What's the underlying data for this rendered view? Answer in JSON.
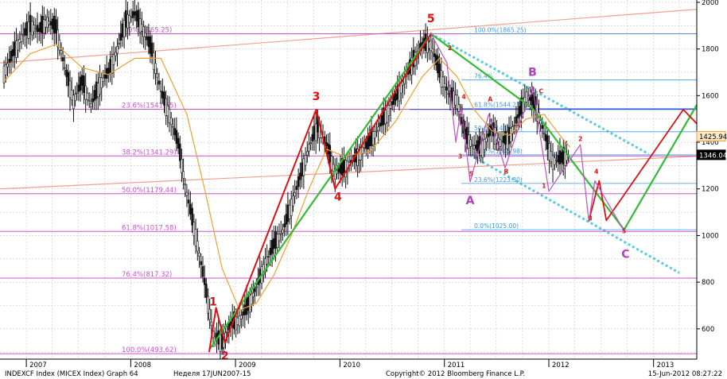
{
  "chart_data": {
    "type": "candlestick",
    "title": "",
    "x_axis": {
      "labels": [
        "2007",
        "2008",
        "2009",
        "2010",
        "2011",
        "2012",
        "2013"
      ],
      "range": [
        "2006-10",
        "2013-06"
      ]
    },
    "y_axis": {
      "ticks": [
        600,
        800,
        1000,
        1200,
        1400,
        1600,
        1800,
        2000
      ],
      "range": [
        470,
        2010
      ],
      "position": "right"
    },
    "grid": true,
    "fib_levels": [
      {
        "label": "0.0%(1865.25)",
        "value": 1865.25
      },
      {
        "label": "23.6%(1541.55)",
        "value": 1541.55
      },
      {
        "label": "38.2%(1341.29)",
        "value": 1341.29
      },
      {
        "label": "50.0%(1179.44)",
        "value": 1179.44
      },
      {
        "label": "61.8%(1017.58)",
        "value": 1017.58
      },
      {
        "label": "76.4%(817.32)",
        "value": 817.32
      },
      {
        "label": "100.0%(493.62)",
        "value": 493.62
      }
    ],
    "fib_levels_2": [
      {
        "label": "100.0%(1865.25)",
        "value": 1865.25
      },
      {
        "label": "76.4%",
        "value": 1667
      },
      {
        "label": "61.8%(1544.27)",
        "value": 1544.27
      },
      {
        "label": "50.0%(1445.13)",
        "value": 1445.13
      },
      {
        "label": "38.2%(1345.98)",
        "value": 1345.98
      },
      {
        "label": "23.6%(1223.30)",
        "value": 1223.3
      },
      {
        "label": "0.0%(1025.00)",
        "value": 1025.0
      }
    ],
    "price_tags": [
      {
        "label": "1425.94",
        "value": 1425.94
      },
      {
        "label": "1346.04",
        "value": 1346.04
      }
    ],
    "wave_labels": [
      {
        "text": "1",
        "x": "2008-10-15",
        "y": 700,
        "color": "#dd1111"
      },
      {
        "text": "2",
        "x": "2008-11-25",
        "y": 468,
        "color": "#dd1111"
      },
      {
        "text": "3",
        "x": "2009-10-10",
        "y": 1580,
        "color": "#dd1111"
      },
      {
        "text": "4",
        "x": "2009-12-25",
        "y": 1150,
        "color": "#dd1111"
      },
      {
        "text": "5",
        "x": "2010-11-15",
        "y": 1915,
        "color": "#dd1111"
      },
      {
        "text": "A",
        "x": "2011-04-01",
        "y": 1135,
        "color": "#b040c0"
      },
      {
        "text": "B",
        "x": "2011-11-05",
        "y": 1685,
        "color": "#b040c0"
      },
      {
        "text": "C",
        "x": "2012-09-25",
        "y": 905,
        "color": "#b040c0"
      },
      {
        "text": "1",
        "x": "2011-09-15",
        "y": 1470,
        "color": "#dd1111"
      },
      {
        "text": "2",
        "x": "2011-01-20",
        "y": 1795,
        "color": "#dd1111"
      },
      {
        "text": "3",
        "x": "2011-02-25",
        "y": 1330,
        "color": "#dd1111"
      },
      {
        "text": "4",
        "x": "2011-03-10",
        "y": 1585,
        "color": "#dd1111"
      },
      {
        "text": "5",
        "x": "2011-04-05",
        "y": 1255,
        "color": "#dd1111"
      },
      {
        "text": "A",
        "x": "2011-06-10",
        "y": 1575,
        "color": "#dd1111"
      },
      {
        "text": "B",
        "x": "2011-08-05",
        "y": 1265,
        "color": "#dd1111"
      },
      {
        "text": "C",
        "x": "2011-12-05",
        "y": 1610,
        "color": "#dd1111"
      },
      {
        "text": "1",
        "x": "2011-12-15",
        "y": 1205,
        "color": "#dd1111"
      },
      {
        "text": "2",
        "x": "2012-04-20",
        "y": 1405,
        "color": "#dd1111"
      },
      {
        "text": "3",
        "x": "2012-05-25",
        "y": 1065,
        "color": "#dd1111"
      },
      {
        "text": "4",
        "x": "2012-06-15",
        "y": 1265,
        "color": "#dd1111"
      },
      {
        "text": "5",
        "x": "2012-09-20",
        "y": 1010,
        "color": "#dd1111"
      }
    ],
    "series": [
      {
        "type": "candlestick",
        "points": [
          [
            "2006-10-15",
            1700
          ],
          [
            "2006-11-15",
            1780
          ],
          [
            "2006-12-15",
            1850
          ],
          [
            "2007-01-15",
            1900
          ],
          [
            "2007-02-15",
            1880
          ],
          [
            "2007-03-15",
            1920
          ],
          [
            "2007-04-15",
            1890
          ],
          [
            "2007-05-15",
            1720
          ],
          [
            "2007-06-15",
            1580
          ],
          [
            "2007-07-15",
            1660
          ],
          [
            "2007-08-15",
            1560
          ],
          [
            "2007-09-15",
            1650
          ],
          [
            "2007-10-15",
            1700
          ],
          [
            "2007-11-15",
            1800
          ],
          [
            "2007-12-15",
            1920
          ],
          [
            "2008-01-15",
            1950
          ],
          [
            "2008-02-15",
            1880
          ],
          [
            "2008-03-15",
            1790
          ],
          [
            "2008-04-15",
            1620
          ],
          [
            "2008-05-15",
            1520
          ],
          [
            "2008-06-15",
            1390
          ],
          [
            "2008-07-15",
            1180
          ],
          [
            "2008-08-15",
            1000
          ],
          [
            "2008-09-15",
            800
          ],
          [
            "2008-10-15",
            580
          ],
          [
            "2008-11-15",
            540
          ],
          [
            "2008-12-15",
            620
          ],
          [
            "2009-01-15",
            640
          ],
          [
            "2009-02-15",
            700
          ],
          [
            "2009-03-15",
            780
          ],
          [
            "2009-04-15",
            880
          ],
          [
            "2009-05-15",
            960
          ],
          [
            "2009-06-15",
            1020
          ],
          [
            "2009-07-15",
            1130
          ],
          [
            "2009-08-15",
            1250
          ],
          [
            "2009-09-15",
            1380
          ],
          [
            "2009-10-15",
            1470
          ],
          [
            "2009-11-15",
            1390
          ],
          [
            "2009-12-15",
            1270
          ],
          [
            "2010-01-15",
            1290
          ],
          [
            "2010-02-15",
            1320
          ],
          [
            "2010-03-15",
            1360
          ],
          [
            "2010-04-15",
            1400
          ],
          [
            "2010-05-15",
            1460
          ],
          [
            "2010-06-15",
            1530
          ],
          [
            "2010-07-15",
            1590
          ],
          [
            "2010-08-15",
            1670
          ],
          [
            "2010-09-15",
            1750
          ],
          [
            "2010-10-15",
            1820
          ],
          [
            "2010-11-15",
            1820
          ],
          [
            "2010-12-15",
            1700
          ],
          [
            "2011-01-15",
            1610
          ],
          [
            "2011-02-15",
            1580
          ],
          [
            "2011-03-15",
            1430
          ],
          [
            "2011-04-15",
            1380
          ],
          [
            "2011-05-15",
            1380
          ],
          [
            "2011-06-15",
            1460
          ],
          [
            "2011-07-15",
            1400
          ],
          [
            "2011-08-15",
            1420
          ],
          [
            "2011-09-15",
            1510
          ],
          [
            "2011-10-15",
            1600
          ],
          [
            "2011-11-15",
            1560
          ],
          [
            "2011-12-15",
            1440
          ],
          [
            "2012-01-15",
            1320
          ],
          [
            "2012-02-15",
            1330
          ],
          [
            "2012-03-15",
            1346
          ]
        ]
      },
      {
        "type": "moving_average",
        "color": "#f0a030",
        "points": [
          [
            "2006-10-15",
            1660
          ],
          [
            "2007-01-15",
            1780
          ],
          [
            "2007-04-15",
            1820
          ],
          [
            "2007-07-15",
            1720
          ],
          [
            "2007-10-15",
            1690
          ],
          [
            "2008-01-15",
            1760
          ],
          [
            "2008-04-15",
            1760
          ],
          [
            "2008-07-15",
            1520
          ],
          [
            "2008-09-15",
            1200
          ],
          [
            "2008-11-15",
            860
          ],
          [
            "2009-01-15",
            680
          ],
          [
            "2009-03-15",
            710
          ],
          [
            "2009-05-15",
            830
          ],
          [
            "2009-07-15",
            1000
          ],
          [
            "2009-09-15",
            1200
          ],
          [
            "2009-11-15",
            1370
          ],
          [
            "2010-01-15",
            1340
          ],
          [
            "2010-04-15",
            1360
          ],
          [
            "2010-07-15",
            1490
          ],
          [
            "2010-10-15",
            1680
          ],
          [
            "2010-12-15",
            1760
          ],
          [
            "2011-02-15",
            1680
          ],
          [
            "2011-04-15",
            1540
          ],
          [
            "2011-06-15",
            1450
          ],
          [
            "2011-08-15",
            1430
          ],
          [
            "2011-10-15",
            1500
          ],
          [
            "2011-12-15",
            1520
          ],
          [
            "2012-02-15",
            1420
          ],
          [
            "2012-03-15",
            1380
          ]
        ]
      }
    ]
  },
  "footer": {
    "left": "INDEXCF Index (MICEX Index) Graph 64",
    "middle": "Неделя 17JUN2007-15",
    "center": "Copyright© 2012 Bloomberg Finance L.P.",
    "right": "15-Jun-2012 08:27:22"
  },
  "colors": {
    "fib": "#d050d0",
    "fib2": "#3a9ae0",
    "green": "#33bb33",
    "red": "#dd1111",
    "magenta": "#c050c0",
    "cyan": "#55ccdd",
    "orange_ma": "#f0a030",
    "salmon": "#f0a090",
    "grid": "#c8c8c8"
  }
}
